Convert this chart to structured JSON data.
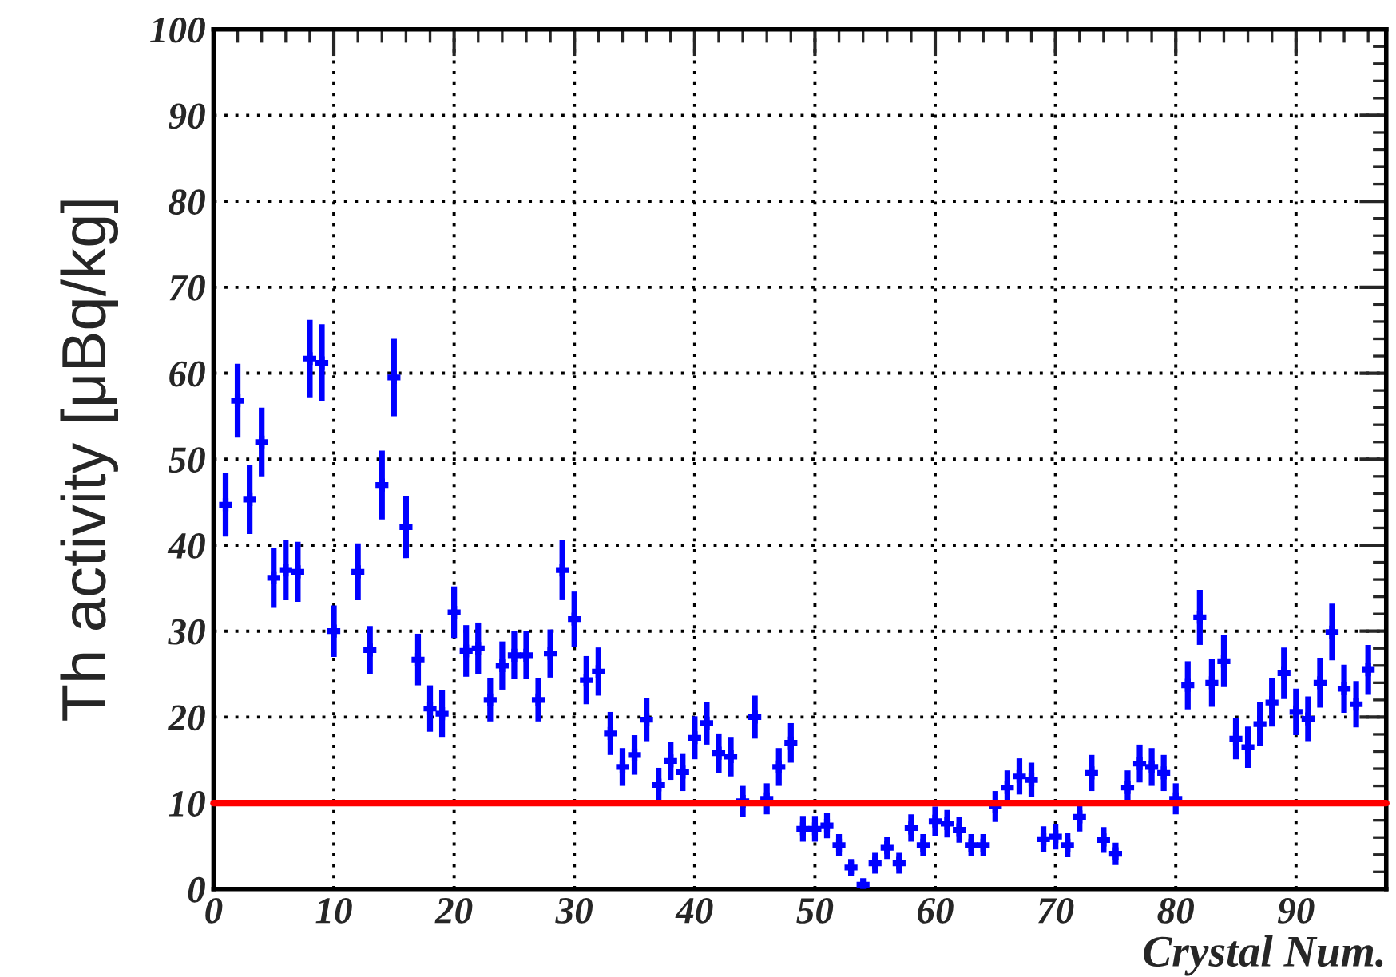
{
  "chart_data": {
    "type": "scatter",
    "xlabel": "Crystal Num.",
    "ylabel": "Th activity [μBq/kg]",
    "x": [
      1,
      2,
      3,
      4,
      5,
      6,
      7,
      8,
      9,
      10,
      11,
      12,
      13,
      14,
      15,
      16,
      17,
      18,
      19,
      20,
      21,
      22,
      23,
      24,
      25,
      26,
      27,
      28,
      29,
      30,
      31,
      32,
      33,
      34,
      35,
      36,
      37,
      38,
      39,
      40,
      41,
      42,
      43,
      44,
      45,
      46,
      47,
      48,
      49,
      50,
      51,
      52,
      53,
      54,
      55,
      56,
      57,
      58,
      59,
      60,
      61,
      62,
      63,
      64,
      65,
      66,
      67,
      68,
      69,
      70,
      71,
      72,
      73,
      74,
      75,
      76,
      77,
      78,
      79,
      80,
      81,
      82,
      83,
      84,
      85,
      86,
      87,
      88,
      89,
      90,
      91,
      92,
      93,
      94,
      95,
      96
    ],
    "series": [
      {
        "color": "#0000ff",
        "values": [
          44.7,
          56.8,
          45.3,
          52,
          36.2,
          37.1,
          36.9,
          61.7,
          61.2,
          30,
          null,
          36.9,
          27.8,
          47,
          59.5,
          42.1,
          26.7,
          21,
          20.4,
          32.2,
          27.7,
          28,
          22,
          26,
          27.2,
          27.2,
          22,
          27.4,
          37.1,
          31.4,
          24.3,
          25.3,
          18.1,
          14.2,
          15.6,
          19.7,
          12.1,
          14.9,
          13.6,
          17.6,
          19.3,
          15.8,
          15.4,
          10.2,
          20,
          10.5,
          14.2,
          17,
          7,
          7,
          7.4,
          5.1,
          2.5,
          0.5,
          3,
          4.8,
          3,
          7.1,
          5.1,
          7.9,
          7.6,
          6.9,
          5.1,
          5.1,
          9.6,
          11.8,
          13.1,
          12.7,
          5.8,
          6.1,
          5.1,
          8.4,
          13.5,
          5.7,
          4.1,
          11.8,
          14.6,
          14.2,
          13.5,
          10.5,
          23.7,
          31.6,
          24,
          26.5,
          17.5,
          16.5,
          19.2,
          21.7,
          25.1,
          20.6,
          19.8,
          24,
          29.9,
          23.3,
          21.5,
          25.5
        ],
        "errors": [
          3.7,
          4.3,
          4,
          4,
          3.5,
          3.5,
          3.5,
          4.5,
          4.5,
          3,
          null,
          3.3,
          2.8,
          4,
          4.5,
          3.6,
          3,
          2.7,
          2.7,
          3,
          3,
          3,
          2.5,
          2.8,
          2.8,
          2.8,
          2.5,
          2.8,
          3.5,
          3.2,
          2.8,
          2.8,
          2.5,
          2.2,
          2.3,
          2.5,
          2,
          2.2,
          2.2,
          2.5,
          2.5,
          2.3,
          2.3,
          1.8,
          2.5,
          1.8,
          2.2,
          2.3,
          1.5,
          1.5,
          1.5,
          1.3,
          1,
          null,
          1.2,
          1.3,
          1.2,
          1.6,
          1.3,
          1.7,
          1.6,
          1.5,
          1.3,
          1.3,
          1.8,
          2,
          2.1,
          2,
          1.5,
          1.5,
          1.4,
          1.7,
          2.1,
          1.5,
          1.3,
          2,
          2.2,
          2.2,
          2.1,
          1.8,
          2.8,
          3.2,
          2.8,
          3,
          2.4,
          2.4,
          2.6,
          2.8,
          3,
          2.7,
          2.6,
          2.9,
          3.3,
          2.8,
          2.7,
          2.9
        ],
        "marker": "cross"
      }
    ],
    "xlim": [
      0,
      97.5
    ],
    "ylim": [
      0,
      100
    ],
    "xticks": [
      0,
      10,
      20,
      30,
      40,
      50,
      60,
      70,
      80,
      90
    ],
    "yticks": [
      0,
      10,
      20,
      30,
      40,
      50,
      60,
      70,
      80,
      90,
      100
    ],
    "grid": true,
    "ref_lines": [
      {
        "axis": "y",
        "value": 10,
        "color": "#ff0000"
      }
    ]
  }
}
